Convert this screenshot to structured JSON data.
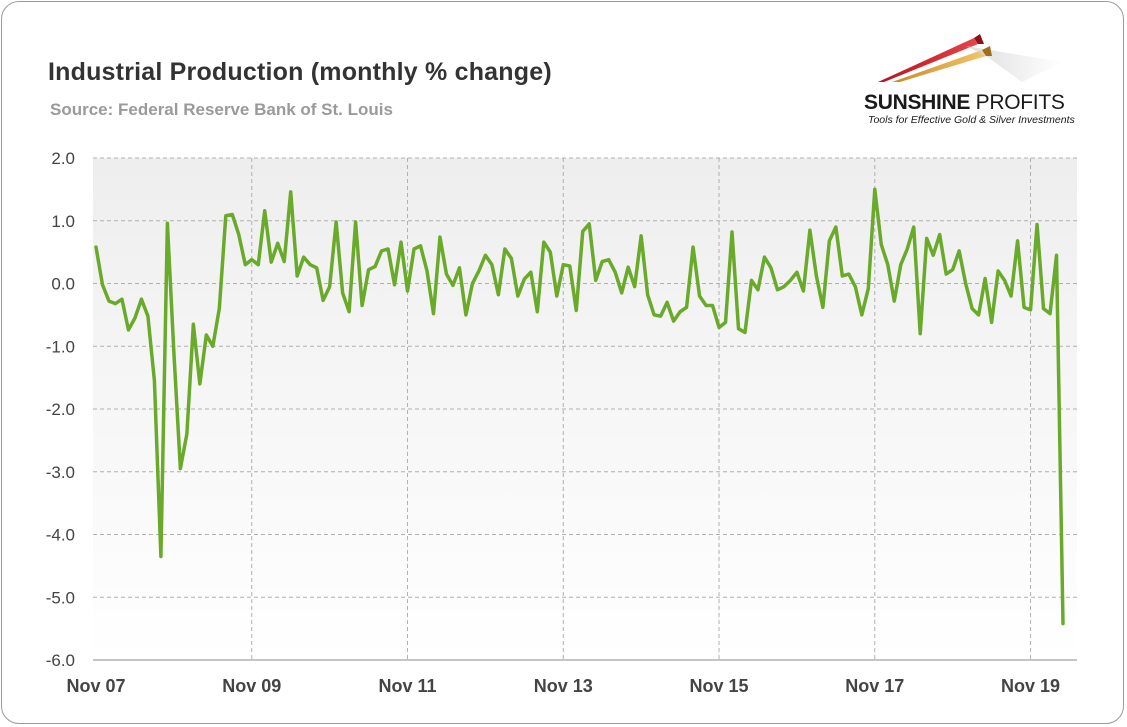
{
  "header": {
    "title": "Industrial Production (monthly % change)",
    "subtitle": "Source: Federal Reserve Bank of St. Louis"
  },
  "logo": {
    "name_bold": "SUNSHINE",
    "name_light": " PROFITS",
    "tagline": "Tools for Effective Gold & Silver Investments"
  },
  "colors": {
    "line": "#6aaa2a",
    "grid": "#b0b0b0",
    "plot_bg_top": "#eeeeee",
    "plot_bg_bottom": "#ffffff"
  },
  "chart_data": {
    "type": "line",
    "title": "Industrial Production (monthly % change)",
    "xlabel": "",
    "ylabel": "",
    "ylim": [
      -6.0,
      2.0
    ],
    "yticks": [
      2.0,
      1.0,
      0.0,
      -1.0,
      -2.0,
      -3.0,
      -4.0,
      -5.0,
      -6.0
    ],
    "ytick_labels": [
      "2.0",
      "1.0",
      "0.0",
      "-1.0",
      "-2.0",
      "-3.0",
      "-4.0",
      "-5.0",
      "-6.0"
    ],
    "x_start": "Nov 07",
    "x_end": "Apr 20",
    "xticks": [
      "Nov 07",
      "Nov 09",
      "Nov 11",
      "Nov 13",
      "Nov 15",
      "Nov 17",
      "Nov 19"
    ],
    "grid": true,
    "legend": "none",
    "series": [
      {
        "values": [
          0.58,
          -0.02,
          -0.28,
          -0.32,
          -0.25,
          -0.74,
          -0.55,
          -0.25,
          -0.52,
          -1.55,
          -4.35,
          0.96,
          -1.1,
          -2.95,
          -2.4,
          -0.65,
          -1.6,
          -0.82,
          -1.0,
          -0.4,
          1.08,
          1.1,
          0.78,
          0.3,
          0.38,
          0.3,
          1.16,
          0.34,
          0.64,
          0.35,
          1.46,
          0.12,
          0.42,
          0.3,
          0.25,
          -0.27,
          -0.05,
          0.98,
          -0.15,
          -0.45,
          0.98,
          -0.35,
          0.22,
          0.27,
          0.52,
          0.55,
          -0.02,
          0.66,
          -0.12,
          0.55,
          0.6,
          0.2,
          -0.48,
          0.74,
          0.15,
          -0.03,
          0.25,
          -0.5,
          0.0,
          0.2,
          0.45,
          0.3,
          -0.18,
          0.55,
          0.4,
          -0.2,
          0.07,
          0.18,
          -0.45,
          0.66,
          0.5,
          -0.2,
          0.3,
          0.28,
          -0.43,
          0.83,
          0.95,
          0.05,
          0.35,
          0.38,
          0.18,
          -0.15,
          0.26,
          -0.05,
          0.76,
          -0.18,
          -0.5,
          -0.52,
          -0.3,
          -0.6,
          -0.45,
          -0.38,
          0.58,
          -0.2,
          -0.35,
          -0.35,
          -0.7,
          -0.62,
          0.82,
          -0.72,
          -0.78,
          0.05,
          -0.1,
          0.42,
          0.25,
          -0.1,
          -0.05,
          0.05,
          0.18,
          -0.12,
          0.85,
          0.12,
          -0.38,
          0.68,
          0.9,
          0.12,
          0.15,
          -0.05,
          -0.5,
          -0.08,
          1.5,
          0.62,
          0.3,
          -0.28,
          0.3,
          0.55,
          0.9,
          -0.8,
          0.72,
          0.45,
          0.78,
          0.15,
          0.22,
          0.52,
          0.0,
          -0.4,
          -0.5,
          0.08,
          -0.62,
          0.2,
          0.05,
          -0.2,
          0.68,
          -0.38,
          -0.42,
          0.94,
          -0.4,
          -0.48,
          0.45,
          -5.42
        ]
      }
    ]
  }
}
